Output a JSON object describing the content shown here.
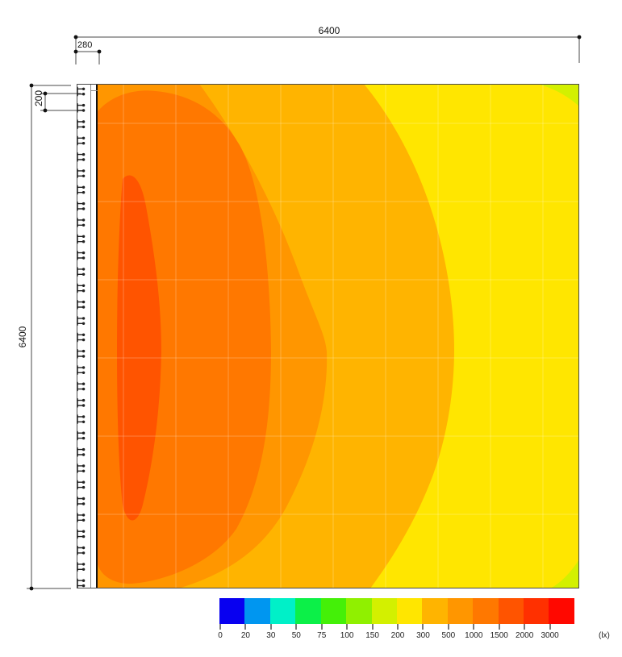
{
  "dimensions": {
    "width_total": "6400",
    "strip_offset": "280",
    "height_total": "6400",
    "fixture_pitch": "200"
  },
  "legend": {
    "tick_labels": [
      "0",
      "20",
      "30",
      "50",
      "75",
      "100",
      "150",
      "200",
      "300",
      "500",
      "1000",
      "1500",
      "2000",
      "3000"
    ],
    "unit_label": "(lx)"
  },
  "chart_data": {
    "type": "heatmap",
    "subtype": "illuminance-contour-plan",
    "unit": "lx",
    "scale_levels": [
      0,
      20,
      30,
      50,
      75,
      100,
      150,
      200,
      300,
      500,
      1000,
      1500,
      2000,
      3000
    ],
    "scale_colors": [
      "#0800F0",
      "#0096F0",
      "#00F0C8",
      "#0CF048",
      "#44F008",
      "#90F000",
      "#D3F000",
      "#FFE600",
      "#FFB400",
      "#FF9600",
      "#FF7800",
      "#FF5400",
      "#FF3000",
      "#FF0800"
    ],
    "legend_position": "bottom",
    "grid": "faint 1m measurement grid over contour area",
    "room": {
      "width_mm": 6400,
      "depth_mm": 6400,
      "luminaire_strip_offset_mm": 280,
      "luminaire_pitch_mm": 200,
      "fixture_count": 31,
      "luminaire_wall": "left"
    },
    "visible_bands": [
      {
        "min_lx": 150,
        "max_lx": 200,
        "color_index": 6,
        "where": "small triangles at top-right and bottom-right corners"
      },
      {
        "min_lx": 200,
        "max_lx": 300,
        "color_index": 7,
        "where": "right third of room"
      },
      {
        "min_lx": 300,
        "max_lx": 500,
        "color_index": 8,
        "where": "vertical band right of center"
      },
      {
        "min_lx": 500,
        "max_lx": 1000,
        "color_index": 9,
        "where": "central band, flares toward corners"
      },
      {
        "min_lx": 1000,
        "max_lx": 1500,
        "color_index": 10,
        "where": "large lobe adjacent to luminaire wall"
      },
      {
        "min_lx": 1500,
        "max_lx": 2000,
        "color_index": 11,
        "where": "narrow tall peak core ~500mm from left wall"
      }
    ]
  }
}
